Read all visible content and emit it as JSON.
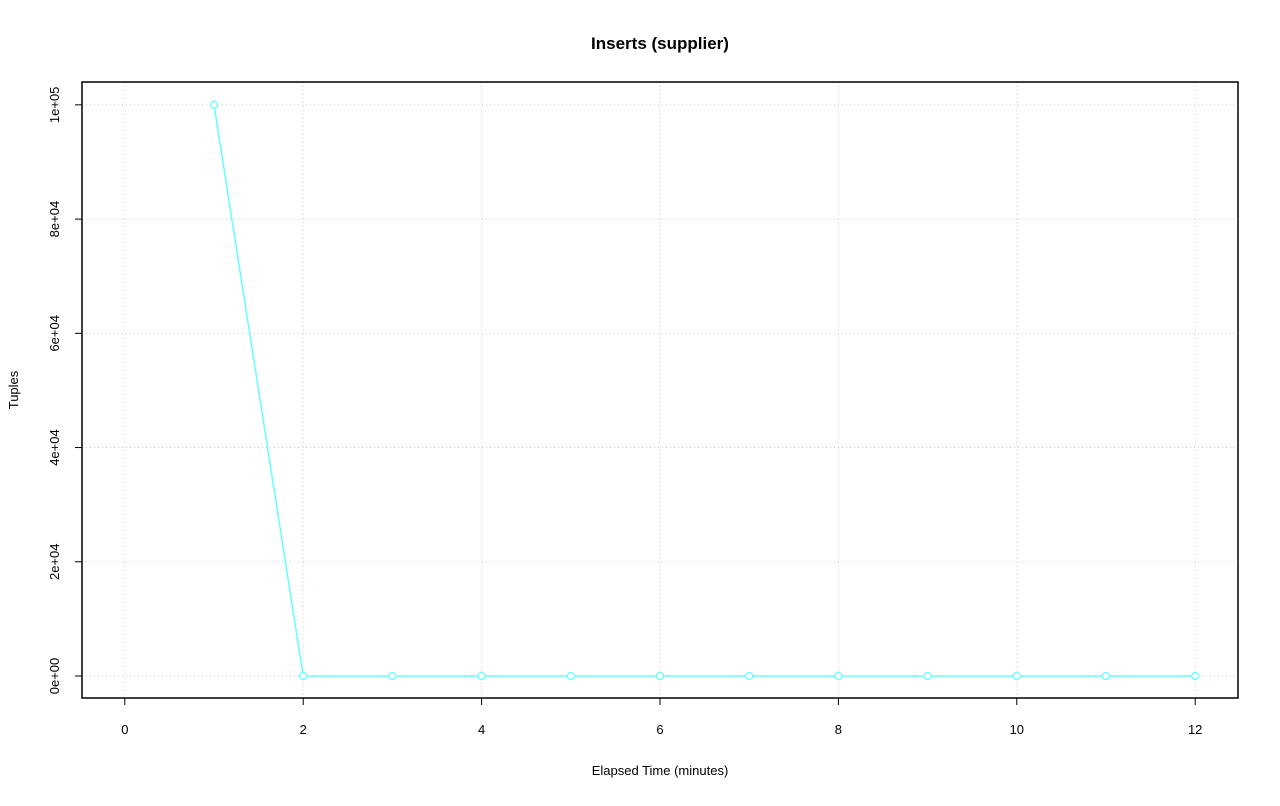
{
  "chart_data": {
    "type": "line",
    "title": "Inserts (supplier)",
    "x_label": "Elapsed Time (minutes)",
    "y_label": "Tuples",
    "x": [
      1,
      2,
      3,
      4,
      5,
      6,
      7,
      8,
      9,
      10,
      11,
      12
    ],
    "series": [
      {
        "name": "supplier",
        "color": "#66ffff",
        "values": [
          100000,
          0,
          0,
          0,
          0,
          0,
          0,
          0,
          0,
          0,
          0,
          0
        ]
      }
    ],
    "xlim": [
      -0.48,
      12.48
    ],
    "xticks": [
      0,
      2,
      4,
      6,
      8,
      10,
      12
    ],
    "ylim": [
      -3850,
      104000
    ],
    "yticks": [
      {
        "value": 0,
        "label": "0e+00"
      },
      {
        "value": 20000,
        "label": "2e+04"
      },
      {
        "value": 40000,
        "label": "4e+04"
      },
      {
        "value": 60000,
        "label": "6e+04"
      },
      {
        "value": 80000,
        "label": "8e+04"
      },
      {
        "value": 100000,
        "label": "1e+05"
      }
    ],
    "grid": true
  }
}
